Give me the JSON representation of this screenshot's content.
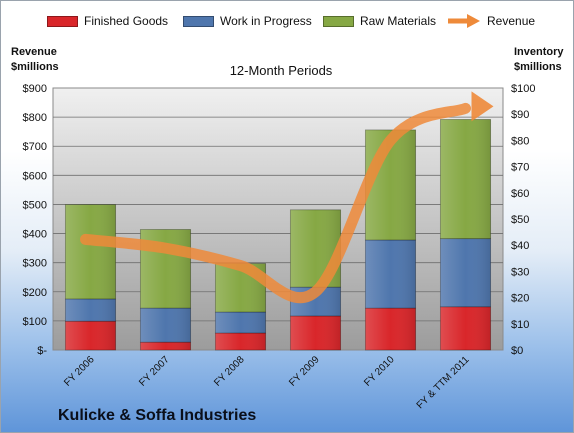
{
  "legend": {
    "finished_goods": "Finished Goods",
    "work_in_progress": "Work in Progress",
    "raw_materials": "Raw Materials",
    "revenue": "Revenue"
  },
  "axis_titles": {
    "left_line1": "Revenue",
    "left_line2": "$millions",
    "right_line1": "Inventory",
    "right_line2": "$millions"
  },
  "subtitle": "12-Month Periods",
  "company": "Kulicke & Soffa Industries",
  "colors": {
    "finished_goods": "#d9262a",
    "work_in_progress": "#4f76ad",
    "raw_materials": "#86a844",
    "revenue": "#ee8a3a",
    "plot_bg_top": "#f0f0f0",
    "plot_bg_bottom": "#9c9c9c"
  },
  "chart_data": {
    "type": "bar",
    "stacked": true,
    "categories": [
      "FY 2006",
      "FY 2007",
      "FY 2008",
      "FY 2009",
      "FY 2010",
      "FY & TTM 2011"
    ],
    "series": [
      {
        "name": "Finished Goods",
        "axis": "right",
        "values": [
          11,
          3,
          6.5,
          13,
          16,
          16.5
        ]
      },
      {
        "name": "Work in Progress",
        "axis": "right",
        "values": [
          8.5,
          13,
          8,
          11,
          26,
          26
        ]
      },
      {
        "name": "Raw Materials",
        "axis": "right",
        "values": [
          36,
          30,
          18.5,
          29.5,
          42,
          45.5
        ]
      },
      {
        "name": "Revenue",
        "type": "line",
        "axis": "left",
        "values": [
          380,
          350,
          290,
          200,
          720,
          830
        ]
      }
    ],
    "left_axis": {
      "ylim": [
        0,
        900
      ],
      "ticks": [
        "$-",
        "$100",
        "$200",
        "$300",
        "$400",
        "$500",
        "$600",
        "$700",
        "$800",
        "$900"
      ]
    },
    "right_axis": {
      "ylim": [
        0,
        100
      ],
      "ticks": [
        "$0",
        "$10",
        "$20",
        "$30",
        "$40",
        "$50",
        "$60",
        "$70",
        "$80",
        "$90",
        "$100"
      ]
    },
    "grid": true,
    "legend_position": "top"
  }
}
